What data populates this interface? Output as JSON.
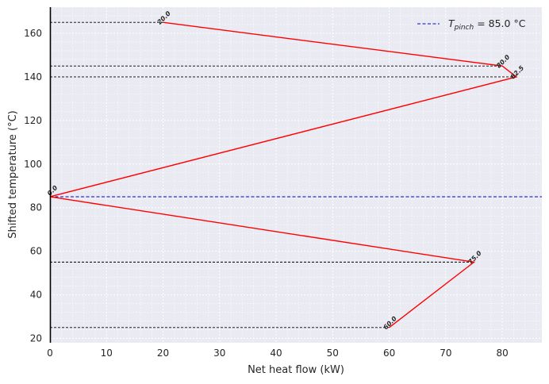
{
  "chart_data": {
    "type": "line",
    "xlabel": "Net heat flow (kW)",
    "ylabel": "Shifted temperature (°C)",
    "xlim": [
      0,
      87
    ],
    "ylim": [
      18,
      172
    ],
    "xticks": [
      0,
      10,
      20,
      30,
      40,
      50,
      60,
      70,
      80
    ],
    "yticks": [
      20,
      40,
      60,
      80,
      100,
      120,
      140,
      160
    ],
    "x_tick_labels": [
      "0",
      "10",
      "20",
      "30",
      "40",
      "50",
      "60",
      "70",
      "80"
    ],
    "y_tick_labels": [
      "20",
      "40",
      "60",
      "80",
      "100",
      "120",
      "140",
      "160"
    ],
    "grid": true,
    "legend_position": "top-right",
    "series": [
      {
        "color": "#ff0000",
        "x": [
          60,
          75,
          0,
          82.5,
          80,
          20
        ],
        "y": [
          25,
          55,
          85,
          140,
          145,
          165
        ],
        "labels": [
          "60.0",
          "75.0",
          "0.0",
          "82.5",
          "80.0",
          "20.0"
        ]
      }
    ],
    "interval_lines": [
      25,
      55,
      140,
      145,
      165
    ],
    "pinch": {
      "legend_text": "T",
      "legend_subscript": "pinch",
      "legend_value": " = 85.0 °C",
      "temperature": 85,
      "color": "#0000cc"
    }
  }
}
